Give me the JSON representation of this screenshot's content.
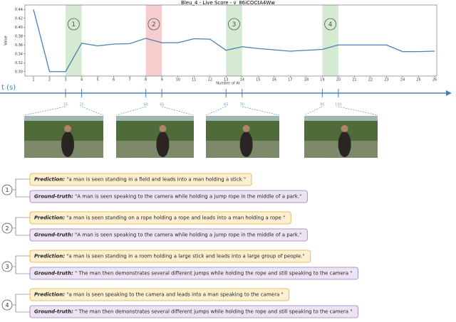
{
  "chart": {
    "type": "line",
    "title": "Bleu_4 - Live Score - v_86iCOCtA4Ww",
    "x_label": "Number of At",
    "y_label": "Value",
    "categories": [
      "1",
      "2",
      "3",
      "4",
      "5",
      "6",
      "7",
      "8",
      "9",
      "10",
      "11",
      "12",
      "13",
      "14",
      "15",
      "16",
      "17",
      "18",
      "19",
      "20",
      "21",
      "22",
      "23",
      "24",
      "25",
      "26"
    ],
    "values": [
      0.44,
      0.3,
      0.3,
      0.364,
      0.358,
      0.362,
      0.363,
      0.375,
      0.365,
      0.365,
      0.374,
      0.373,
      0.348,
      0.356,
      0.352,
      0.349,
      0.346,
      0.348,
      0.35,
      0.36,
      0.36,
      0.36,
      0.36,
      0.345,
      0.345,
      0.346
    ],
    "color": "#4a7fb5",
    "ylim": [
      0.29,
      0.45
    ],
    "yticks": [
      {
        "value": 0.3,
        "label": "0.30"
      },
      {
        "value": 0.32,
        "label": "0.32"
      },
      {
        "value": 0.34,
        "label": "0.34"
      },
      {
        "value": 0.36,
        "label": "0.36"
      },
      {
        "value": 0.38,
        "label": "0.38"
      },
      {
        "value": 0.4,
        "label": "0.40"
      },
      {
        "value": 0.42,
        "label": "0.42"
      },
      {
        "value": 0.44,
        "label": "0.44"
      }
    ],
    "highlights": [
      {
        "label": "1",
        "start": 3,
        "end": 4,
        "color": "#d5ead3"
      },
      {
        "label": "2",
        "start": 8,
        "end": 9,
        "color": "#f6cccc"
      },
      {
        "label": "3",
        "start": 13,
        "end": 14,
        "color": "#d5ead3"
      },
      {
        "label": "4",
        "start": 19,
        "end": 20,
        "color": "#d5ead3"
      }
    ]
  },
  "timeline": {
    "label": "t (s)",
    "ticks": [
      15,
      20,
      40,
      45,
      65,
      70,
      95,
      100
    ]
  },
  "entries": [
    {
      "number": "1",
      "prediction": {
        "label": "Prediction:",
        "text": " \"a man is seen standing in a field and leads into a man holding a stick \""
      },
      "ground_truth": {
        "label": "Ground-truth:",
        "text": " \"A man is seen speaking to the camera while holding a jump rope in the middle of a park.\""
      }
    },
    {
      "number": "2",
      "prediction": {
        "label": "Prediction:",
        "text": " \"a man is seen standing on a rope holding a rope and leads into a man holding a rope \""
      },
      "ground_truth": {
        "label": "Ground-truth:",
        "text": " \"A man is seen speaking to the camera while holding a jump rope in the middle of a park.\""
      }
    },
    {
      "number": "3",
      "prediction": {
        "label": "Prediction:",
        "text": " \"a man is seen standing in a room holding a large stick and leads into a large group of people.\""
      },
      "ground_truth": {
        "label": "Ground-truth:",
        "text": " \" The man then demonstrates several different jumps while holding the rope and still speaking to the camera \""
      }
    },
    {
      "number": "4",
      "prediction": {
        "label": "Prediction:",
        "text": " \"a man is seen speaking to the camera and leads into a man speaking to the camera \""
      },
      "ground_truth": {
        "label": "Ground-truth:",
        "text": " \" The man then demonstrates several different jumps while holding the rope and still speaking to the camera \""
      }
    }
  ]
}
